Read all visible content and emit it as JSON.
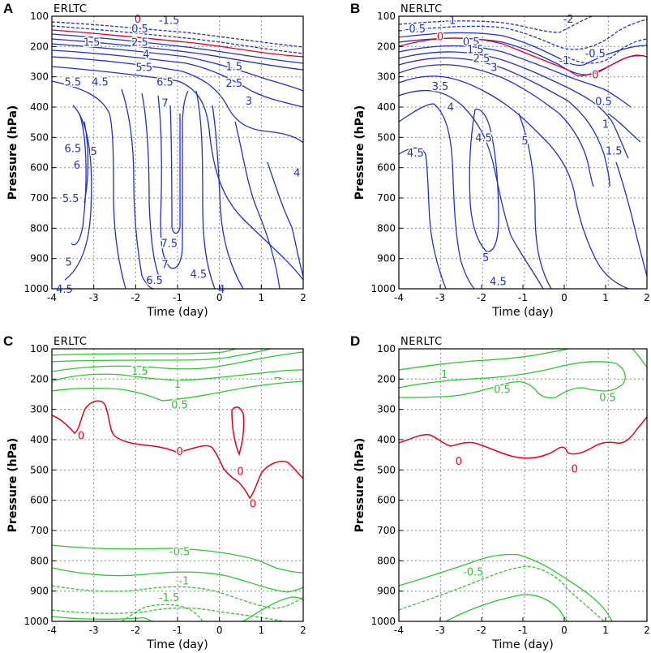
{
  "chart_data": [
    {
      "panel": "A",
      "title": "ERLTC",
      "type": "contour",
      "xlabel": "Time (day)",
      "ylabel": "Pressure (hPa)",
      "xlim": [
        -4,
        2
      ],
      "ylim": [
        1000,
        100
      ],
      "xticks": [
        -4,
        -3,
        -2,
        -1,
        0,
        1,
        2
      ],
      "yticks": [
        100,
        200,
        300,
        400,
        500,
        600,
        700,
        800,
        900,
        1000
      ],
      "grid": true,
      "contour_labels": [
        {
          "text": "0",
          "x": -1.95,
          "y": 108,
          "color": "#e8001c"
        },
        {
          "text": "-1.5",
          "x": -1.2,
          "y": 112,
          "color": "#2030d0"
        },
        {
          "text": "0.5",
          "x": -1.9,
          "y": 140,
          "color": "#2030d0"
        },
        {
          "text": "1.5",
          "x": -3.05,
          "y": 185,
          "color": "#2030d0"
        },
        {
          "text": "2.5",
          "x": -1.9,
          "y": 185,
          "color": "#2030d0"
        },
        {
          "text": "4",
          "x": -1.75,
          "y": 225,
          "color": "#2030d0"
        },
        {
          "text": "5.5",
          "x": -1.8,
          "y": 268,
          "color": "#2030d0"
        },
        {
          "text": "5.5",
          "x": -3.5,
          "y": 315,
          "color": "#2030d0"
        },
        {
          "text": "4.5",
          "x": -2.85,
          "y": 315,
          "color": "#2030d0"
        },
        {
          "text": "6.5",
          "x": -1.3,
          "y": 315,
          "color": "#2030d0"
        },
        {
          "text": "1.5",
          "x": 0.35,
          "y": 265,
          "color": "#2030d0"
        },
        {
          "text": "2.5",
          "x": 0.35,
          "y": 320,
          "color": "#2030d0"
        },
        {
          "text": "7",
          "x": -1.3,
          "y": 385,
          "color": "#2030d0"
        },
        {
          "text": "3",
          "x": 0.7,
          "y": 378,
          "color": "#2030d0"
        },
        {
          "text": "6.5",
          "x": -3.5,
          "y": 535,
          "color": "#2030d0"
        },
        {
          "text": "5",
          "x": -3.0,
          "y": 545,
          "color": "#2030d0"
        },
        {
          "text": "6",
          "x": -3.4,
          "y": 590,
          "color": "#2030d0"
        },
        {
          "text": "4",
          "x": 1.85,
          "y": 615,
          "color": "#2030d0"
        },
        {
          "text": "5.5",
          "x": -3.55,
          "y": 700,
          "color": "#2030d0"
        },
        {
          "text": "7.5",
          "x": -1.2,
          "y": 848,
          "color": "#2030d0"
        },
        {
          "text": "5",
          "x": -3.6,
          "y": 910,
          "color": "#2030d0"
        },
        {
          "text": "7",
          "x": -1.3,
          "y": 918,
          "color": "#2030d0"
        },
        {
          "text": "4.5",
          "x": -0.5,
          "y": 950,
          "color": "#2030d0"
        },
        {
          "text": "6.5",
          "x": -1.55,
          "y": 970,
          "color": "#2030d0"
        },
        {
          "text": "4.5",
          "x": -3.7,
          "y": 1000,
          "color": "#2030d0"
        },
        {
          "text": "4",
          "x": 0.05,
          "y": 1000,
          "color": "#2030d0"
        }
      ]
    },
    {
      "panel": "B",
      "title": "NERLTC",
      "type": "contour",
      "xlabel": "Time (day)",
      "ylabel": "Pressure (hPa)",
      "xlim": [
        -4,
        2
      ],
      "ylim": [
        1000,
        100
      ],
      "xticks": [
        -4,
        -3,
        -2,
        -1,
        0,
        1,
        2
      ],
      "yticks": [
        100,
        200,
        300,
        400,
        500,
        600,
        700,
        800,
        900,
        1000
      ],
      "grid": true,
      "contour_labels": [
        {
          "text": "-2",
          "x": 0.1,
          "y": 108,
          "color": "#2030d0"
        },
        {
          "text": "-1",
          "x": -2.75,
          "y": 112,
          "color": "#2030d0"
        },
        {
          "text": "-0.5",
          "x": -3.6,
          "y": 140,
          "color": "#2030d0"
        },
        {
          "text": "0",
          "x": -3.0,
          "y": 165,
          "color": "#e8001c"
        },
        {
          "text": "0.5",
          "x": -2.25,
          "y": 183,
          "color": "#2030d0"
        },
        {
          "text": "1.5",
          "x": -2.15,
          "y": 208,
          "color": "#2030d0"
        },
        {
          "text": "2.5",
          "x": -2.0,
          "y": 238,
          "color": "#2030d0"
        },
        {
          "text": "3",
          "x": -1.7,
          "y": 268,
          "color": "#2030d0"
        },
        {
          "text": "-1",
          "x": 0.0,
          "y": 245,
          "color": "#2030d0"
        },
        {
          "text": "-0.5",
          "x": 0.75,
          "y": 222,
          "color": "#2030d0"
        },
        {
          "text": "0",
          "x": 0.75,
          "y": 292,
          "color": "#e8001c"
        },
        {
          "text": "3.5",
          "x": -3.0,
          "y": 330,
          "color": "#2030d0"
        },
        {
          "text": "0.5",
          "x": 0.95,
          "y": 380,
          "color": "#2030d0"
        },
        {
          "text": "4",
          "x": -2.75,
          "y": 398,
          "color": "#2030d0"
        },
        {
          "text": "1",
          "x": 1.0,
          "y": 455,
          "color": "#2030d0"
        },
        {
          "text": "4.5",
          "x": -1.95,
          "y": 500,
          "color": "#2030d0"
        },
        {
          "text": "5",
          "x": -0.95,
          "y": 510,
          "color": "#2030d0"
        },
        {
          "text": "1.5",
          "x": 1.2,
          "y": 543,
          "color": "#2030d0"
        },
        {
          "text": "4.5",
          "x": -3.6,
          "y": 550,
          "color": "#2030d0"
        },
        {
          "text": "5",
          "x": -1.9,
          "y": 895,
          "color": "#2030d0"
        },
        {
          "text": "4.5",
          "x": -1.6,
          "y": 975,
          "color": "#2030d0"
        }
      ]
    },
    {
      "panel": "C",
      "title": "ERLTC",
      "type": "contour",
      "xlabel": "Time (day)",
      "ylabel": "Pressure (hPa)",
      "xlim": [
        -4,
        2
      ],
      "ylim": [
        1000,
        100
      ],
      "xticks": [
        -4,
        -3,
        -2,
        -1,
        0,
        1,
        2
      ],
      "yticks": [
        100,
        200,
        300,
        400,
        500,
        600,
        700,
        800,
        900,
        1000
      ],
      "grid": true,
      "contour_labels": [
        {
          "text": "1.5",
          "x": -1.9,
          "y": 172,
          "color": "#2bc82b"
        },
        {
          "text": "1",
          "x": -1.0,
          "y": 215,
          "color": "#2bc82b"
        },
        {
          "text": "0.5",
          "x": -0.95,
          "y": 283,
          "color": "#2bc82b"
        },
        {
          "text": "0",
          "x": -3.3,
          "y": 385,
          "color": "#e8001c"
        },
        {
          "text": "0",
          "x": -0.95,
          "y": 438,
          "color": "#e8001c"
        },
        {
          "text": "0",
          "x": 0.5,
          "y": 503,
          "color": "#e8001c"
        },
        {
          "text": "0",
          "x": 0.8,
          "y": 610,
          "color": "#e8001c"
        },
        {
          "text": "-0.5",
          "x": -0.95,
          "y": 768,
          "color": "#2bc82b"
        },
        {
          "text": "-1",
          "x": -0.85,
          "y": 865,
          "color": "#2bc82b"
        },
        {
          "text": "-1.5",
          "x": -1.2,
          "y": 920,
          "color": "#2bc82b"
        }
      ]
    },
    {
      "panel": "D",
      "title": "NERLTC",
      "type": "contour",
      "xlabel": "Time (day)",
      "ylabel": "Pressure (hPa)",
      "xlim": [
        -4,
        2
      ],
      "ylim": [
        1000,
        100
      ],
      "xticks": [
        -4,
        -3,
        -2,
        -1,
        0,
        1,
        2
      ],
      "yticks": [
        100,
        200,
        300,
        400,
        500,
        600,
        700,
        800,
        900,
        1000
      ],
      "grid": true,
      "contour_labels": [
        {
          "text": "1",
          "x": -2.9,
          "y": 183,
          "color": "#2bc82b"
        },
        {
          "text": "0.5",
          "x": -1.5,
          "y": 233,
          "color": "#2bc82b"
        },
        {
          "text": "0.5",
          "x": 1.05,
          "y": 260,
          "color": "#2bc82b"
        },
        {
          "text": "0",
          "x": -2.55,
          "y": 470,
          "color": "#e8001c"
        },
        {
          "text": "0",
          "x": 0.25,
          "y": 495,
          "color": "#e8001c"
        },
        {
          "text": "-0.5",
          "x": -2.2,
          "y": 835,
          "color": "#2bc82b"
        }
      ]
    }
  ],
  "colors": {
    "positive": "#2030d0",
    "zero": "#e8001c",
    "green": "#2bc82b"
  }
}
